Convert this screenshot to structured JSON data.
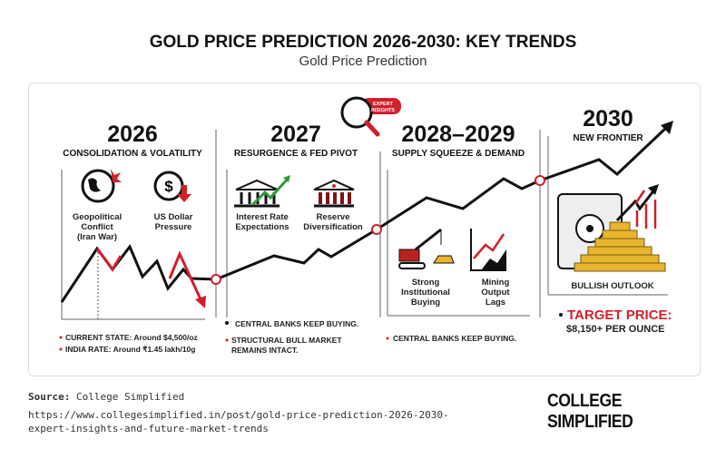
{
  "title": "GOLD PRICE PREDICTION 2026-2030: KEY TRENDS",
  "subtitle": "Gold Price Prediction",
  "badge": [
    "EXPERT",
    "INSIGHTS"
  ],
  "sections": [
    {
      "year": "2026",
      "phase": "CONSOLIDATION & VOLATILITY",
      "items": [
        [
          "Geopolitical",
          "Conflict",
          "(Iran War)"
        ],
        [
          "US Dollar",
          "Pressure"
        ]
      ],
      "notes": [
        "CURRENT STATE: Around $4,500/oz",
        "INDIA RATE: Around ₹1.45 lakh/10g"
      ]
    },
    {
      "year": "2027",
      "phase": "RESURGENCE & FED PIVOT",
      "items": [
        [
          "Interest Rate",
          "Expectations"
        ],
        [
          "Reserve",
          "Diversification"
        ]
      ],
      "notes": [
        "CENTRAL BANKS KEEP BUYING.",
        "STRUCTURAL BULL MARKET",
        "REMAINS INTACT."
      ]
    },
    {
      "year": "2028–2029",
      "phase": "SUPPLY SQUEEZE & DEMAND",
      "items": [
        [
          "Strong",
          "Institutional",
          "Buying"
        ],
        [
          "Mining",
          "Output",
          "Lags"
        ]
      ],
      "notes": [
        "CENTRAL BANKS KEEP BUYING."
      ]
    },
    {
      "year": "2030",
      "phase": "NEW FRONTIER",
      "items": [
        [
          "BULLISH OUTLOOK"
        ]
      ],
      "notes": [
        "TARGET PRICE:",
        "$8,150+ PER OUNCE"
      ]
    }
  ],
  "colors": {
    "accent": "#d0202a",
    "line": "#111111",
    "gold": "#e8b531",
    "green": "#2e9a3a"
  },
  "footer": {
    "source_label": "Source:",
    "source": "College Simplified",
    "url_line1": "https://www.collegesimplified.in/post/gold-price-prediction-2026-2030-",
    "url_line2": "expert-insights-and-future-market-trends",
    "logo": "COLLEGE SIMPLIFIED"
  }
}
